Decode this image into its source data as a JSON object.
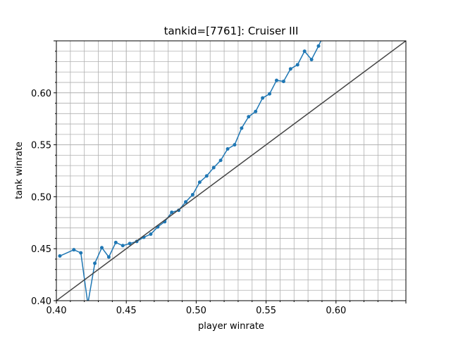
{
  "chart_data": {
    "type": "line",
    "title": "tankid=[7761]: Cruiser III",
    "xlabel": "player winrate",
    "ylabel": "tank winrate",
    "xlim": [
      0.4,
      0.65
    ],
    "ylim": [
      0.4,
      0.65
    ],
    "x_ticks": [
      "0.40",
      "0.45",
      "0.50",
      "0.55",
      "0.60"
    ],
    "y_ticks": [
      "0.40",
      "0.45",
      "0.50",
      "0.55",
      "0.60"
    ],
    "grid": true,
    "series": [
      {
        "color": "#1f77b4",
        "points": [
          [
            0.4025,
            0.443
          ],
          [
            0.4125,
            0.449
          ],
          [
            0.4175,
            0.446
          ],
          [
            0.4225,
            0.397
          ],
          [
            0.4275,
            0.436
          ],
          [
            0.4325,
            0.451
          ],
          [
            0.4375,
            0.442
          ],
          [
            0.4425,
            0.456
          ],
          [
            0.4475,
            0.453
          ],
          [
            0.4525,
            0.455
          ],
          [
            0.4575,
            0.457
          ],
          [
            0.4625,
            0.461
          ],
          [
            0.4675,
            0.464
          ],
          [
            0.4725,
            0.471
          ],
          [
            0.4775,
            0.476
          ],
          [
            0.4825,
            0.485
          ],
          [
            0.4875,
            0.487
          ],
          [
            0.4925,
            0.495
          ],
          [
            0.4975,
            0.502
          ],
          [
            0.5025,
            0.514
          ],
          [
            0.5075,
            0.52
          ],
          [
            0.5125,
            0.528
          ],
          [
            0.5175,
            0.535
          ],
          [
            0.5225,
            0.546
          ],
          [
            0.5275,
            0.55
          ],
          [
            0.5325,
            0.566
          ],
          [
            0.5375,
            0.577
          ],
          [
            0.5425,
            0.582
          ],
          [
            0.5475,
            0.595
          ],
          [
            0.5525,
            0.599
          ],
          [
            0.5575,
            0.612
          ],
          [
            0.5625,
            0.611
          ],
          [
            0.5675,
            0.623
          ],
          [
            0.5725,
            0.627
          ],
          [
            0.5775,
            0.64
          ],
          [
            0.5825,
            0.632
          ],
          [
            0.5875,
            0.645
          ],
          [
            0.5925,
            0.66
          ]
        ]
      },
      {
        "color": "#444444",
        "points": [
          [
            0.4,
            0.4
          ],
          [
            0.65,
            0.65
          ]
        ]
      }
    ]
  }
}
